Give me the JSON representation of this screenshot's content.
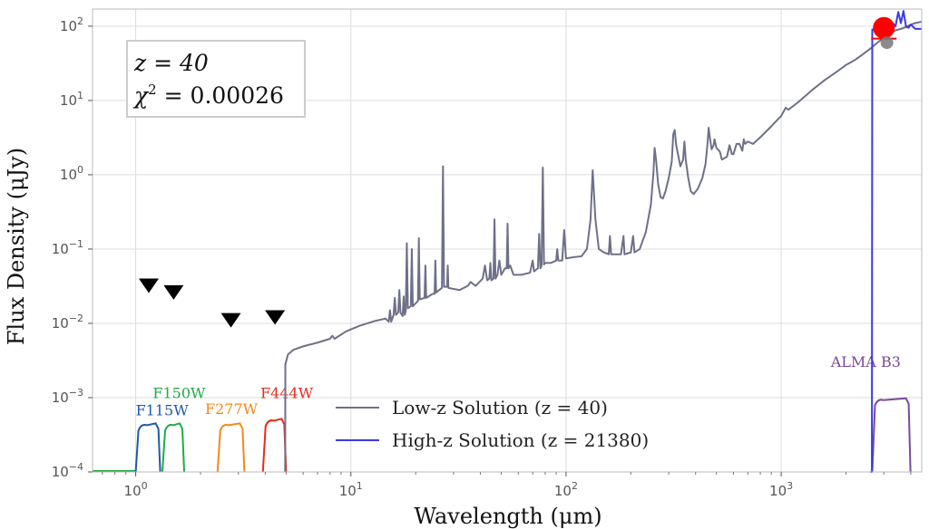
{
  "chart_data": {
    "type": "line",
    "xlabel": "Wavelength (μm)",
    "ylabel": "Flux Density (μJy)",
    "xscale": "log",
    "yscale": "log",
    "xlim": [
      0.63,
      4500
    ],
    "ylim": [
      0.0001,
      170
    ],
    "x_ticks": [
      {
        "value": 1,
        "base": "10",
        "exp": "0"
      },
      {
        "value": 10,
        "base": "10",
        "exp": "1"
      },
      {
        "value": 100,
        "base": "10",
        "exp": "2"
      },
      {
        "value": 1000,
        "base": "10",
        "exp": "3"
      }
    ],
    "y_ticks": [
      {
        "value": 0.0001,
        "base": "10",
        "exp": "−4"
      },
      {
        "value": 0.001,
        "base": "10",
        "exp": "−3"
      },
      {
        "value": 0.01,
        "base": "10",
        "exp": "−2"
      },
      {
        "value": 0.1,
        "base": "10",
        "exp": "−1"
      },
      {
        "value": 1,
        "base": "10",
        "exp": "0"
      },
      {
        "value": 10,
        "base": "10",
        "exp": "1"
      },
      {
        "value": 100,
        "base": "10",
        "exp": "2"
      }
    ],
    "grid": true,
    "annotation": {
      "line1": "z = 40",
      "line2_prefix": "χ",
      "line2_exp": "2",
      "line2_value": " = 0.00026"
    },
    "legend": {
      "position": "bottom-center",
      "entries": [
        {
          "label": "Low-z Solution (z = 40)",
          "color": "#6e7088"
        },
        {
          "label": "High-z Solution (z = 21380)",
          "color": "#3a3ae8"
        }
      ]
    },
    "series": [
      {
        "name": "Low-z Solution (z = 40)",
        "color": "#6e7088",
        "points": [
          [
            4.95,
            0.0001
          ],
          [
            4.96,
            0.0028
          ],
          [
            5.1,
            0.0038
          ],
          [
            5.4,
            0.0044
          ],
          [
            6.0,
            0.0049
          ],
          [
            7.0,
            0.0055
          ],
          [
            8.0,
            0.0062
          ],
          [
            8.2,
            0.0068
          ],
          [
            8.4,
            0.0062
          ],
          [
            9.5,
            0.0078
          ],
          [
            11,
            0.0093
          ],
          [
            13,
            0.0108
          ],
          [
            14.5,
            0.0116
          ],
          [
            15,
            0.0105
          ],
          [
            15.2,
            0.015
          ],
          [
            15.4,
            0.0105
          ],
          [
            15.8,
            0.013
          ],
          [
            16,
            0.022
          ],
          [
            16.2,
            0.013
          ],
          [
            16.6,
            0.014
          ],
          [
            16.8,
            0.028
          ],
          [
            17.0,
            0.014
          ],
          [
            17.4,
            0.0125
          ],
          [
            17.6,
            0.023
          ],
          [
            17.8,
            0.013
          ],
          [
            18.0,
            0.015
          ],
          [
            18.2,
            0.12
          ],
          [
            18.4,
            0.016
          ],
          [
            19,
            0.017
          ],
          [
            19.2,
            0.1
          ],
          [
            19.4,
            0.017
          ],
          [
            20.5,
            0.02
          ],
          [
            20.7,
            0.14
          ],
          [
            20.9,
            0.021
          ],
          [
            22,
            0.022
          ],
          [
            22.2,
            0.06
          ],
          [
            22.4,
            0.022
          ],
          [
            24,
            0.025
          ],
          [
            24.5,
            0.025
          ],
          [
            24.7,
            0.07
          ],
          [
            24.9,
            0.026
          ],
          [
            26.5,
            0.03
          ],
          [
            26.8,
            1.3
          ],
          [
            27.1,
            0.031
          ],
          [
            28,
            0.031
          ],
          [
            28.2,
            0.06
          ],
          [
            28.4,
            0.03
          ],
          [
            32,
            0.028
          ],
          [
            35,
            0.032
          ],
          [
            36,
            0.036
          ],
          [
            38,
            0.032
          ],
          [
            41,
            0.04
          ],
          [
            42,
            0.06
          ],
          [
            43,
            0.038
          ],
          [
            44,
            0.04
          ],
          [
            44.5,
            0.065
          ],
          [
            45,
            0.038
          ],
          [
            46,
            0.04
          ],
          [
            46.5,
            0.25
          ],
          [
            47,
            0.04
          ],
          [
            48,
            0.045
          ],
          [
            49,
            0.07
          ],
          [
            50,
            0.045
          ],
          [
            52,
            0.055
          ],
          [
            53,
            0.055
          ],
          [
            53.5,
            0.22
          ],
          [
            54,
            0.055
          ],
          [
            55,
            0.06
          ],
          [
            57,
            0.045
          ],
          [
            62,
            0.045
          ],
          [
            68,
            0.048
          ],
          [
            70,
            0.07
          ],
          [
            71,
            0.05
          ],
          [
            74,
            0.055
          ],
          [
            75,
            0.16
          ],
          [
            76,
            0.055
          ],
          [
            77,
            0.06
          ],
          [
            78,
            1.25
          ],
          [
            79,
            0.062
          ],
          [
            80,
            0.065
          ],
          [
            82,
            0.065
          ],
          [
            85,
            0.065
          ],
          [
            88,
            0.068
          ],
          [
            90,
            0.07
          ],
          [
            91,
            0.1
          ],
          [
            92,
            0.07
          ],
          [
            96,
            0.07
          ],
          [
            98,
            0.18
          ],
          [
            100,
            0.075
          ],
          [
            110,
            0.078
          ],
          [
            118,
            0.08
          ],
          [
            125,
            0.1
          ],
          [
            130,
            0.25
          ],
          [
            133,
            1.15
          ],
          [
            137,
            0.25
          ],
          [
            142,
            0.1
          ],
          [
            150,
            0.09
          ],
          [
            158,
            0.085
          ],
          [
            160,
            0.15
          ],
          [
            162,
            0.085
          ],
          [
            180,
            0.085
          ],
          [
            185,
            0.15
          ],
          [
            187,
            0.085
          ],
          [
            200,
            0.09
          ],
          [
            205,
            0.15
          ],
          [
            208,
            0.09
          ],
          [
            220,
            0.1
          ],
          [
            235,
            0.17
          ],
          [
            248,
            0.4
          ],
          [
            255,
            1.1
          ],
          [
            258,
            2.3
          ],
          [
            262,
            1.6
          ],
          [
            268,
            0.75
          ],
          [
            275,
            0.5
          ],
          [
            282,
            0.48
          ],
          [
            290,
            0.6
          ],
          [
            300,
            0.9
          ],
          [
            310,
            1.5
          ],
          [
            315,
            3.5
          ],
          [
            320,
            4.0
          ],
          [
            325,
            2.5
          ],
          [
            340,
            1.3
          ],
          [
            350,
            1.6
          ],
          [
            355,
            2.8
          ],
          [
            360,
            1.6
          ],
          [
            370,
            0.9
          ],
          [
            380,
            0.6
          ],
          [
            392,
            0.55
          ],
          [
            410,
            0.65
          ],
          [
            430,
            0.9
          ],
          [
            445,
            1.4
          ],
          [
            455,
            2.7
          ],
          [
            460,
            4.3
          ],
          [
            466,
            3.2
          ],
          [
            475,
            2.2
          ],
          [
            485,
            2.5
          ],
          [
            490,
            3.0
          ],
          [
            500,
            2.3
          ],
          [
            515,
            2.1
          ],
          [
            520,
            2.0
          ],
          [
            530,
            1.6
          ],
          [
            560,
            1.75
          ],
          [
            575,
            2.5
          ],
          [
            590,
            1.9
          ],
          [
            600,
            1.9
          ],
          [
            620,
            2.6
          ],
          [
            640,
            2.6
          ],
          [
            660,
            2.1
          ],
          [
            670,
            3.0
          ],
          [
            680,
            2.6
          ],
          [
            700,
            2.8
          ],
          [
            740,
            2.6
          ],
          [
            800,
            3.2
          ],
          [
            900,
            4.5
          ],
          [
            1000,
            6.2
          ],
          [
            1050,
            8.0
          ],
          [
            1080,
            7.5
          ],
          [
            1200,
            9.5
          ],
          [
            1400,
            14
          ],
          [
            1600,
            19
          ],
          [
            1800,
            24
          ],
          [
            2000,
            30
          ],
          [
            2200,
            35
          ],
          [
            2400,
            42
          ],
          [
            2600,
            50
          ],
          [
            2800,
            60
          ],
          [
            3000,
            70
          ],
          [
            3200,
            80
          ],
          [
            3400,
            88
          ],
          [
            3600,
            92
          ],
          [
            3800,
            97
          ],
          [
            4000,
            105
          ],
          [
            4200,
            110
          ],
          [
            4500,
            115
          ]
        ]
      },
      {
        "name": "High-z Solution (z = 21380)",
        "color": "#3a3ae8",
        "points": [
          [
            2600,
            0.0001
          ],
          [
            2640,
            0.0001
          ],
          [
            2650,
            90
          ],
          [
            3000,
            92
          ],
          [
            3200,
            95
          ],
          [
            3300,
            110
          ],
          [
            3400,
            100
          ],
          [
            3500,
            155
          ],
          [
            3600,
            110
          ],
          [
            3700,
            160
          ],
          [
            3800,
            100
          ],
          [
            3900,
            95
          ],
          [
            4000,
            105
          ],
          [
            4200,
            92
          ],
          [
            4500,
            92
          ]
        ]
      }
    ],
    "upper_limits": [
      {
        "x": 1.15,
        "y": 0.032
      },
      {
        "x": 1.5,
        "y": 0.026
      },
      {
        "x": 2.77,
        "y": 0.011
      },
      {
        "x": 4.44,
        "y": 0.012
      }
    ],
    "detections": [
      {
        "x": 3000,
        "y": 95,
        "color": "#ff0000",
        "err_low": 68,
        "err_high": 105
      },
      {
        "x": 3100,
        "y": 60,
        "color": "#777777"
      }
    ],
    "filters": [
      {
        "name": "F115W",
        "color": "#1f5aa6",
        "x0": 1.0,
        "x1": 1.3,
        "label_x": 1.0,
        "label_y": 0.00058
      },
      {
        "name": "F150W",
        "color": "#22aa44",
        "x0": 1.33,
        "x1": 1.68,
        "label_x": 1.2,
        "label_y": 0.00098
      },
      {
        "name": "F277W",
        "color": "#f08a1c",
        "x0": 2.4,
        "x1": 3.2,
        "label_x": 2.1,
        "label_y": 0.0006
      },
      {
        "name": "F444W",
        "color": "#e62b1c",
        "x0": 3.9,
        "x1": 5.0,
        "label_x": 3.8,
        "label_y": 0.00098
      },
      {
        "name": "ALMA B3",
        "color": "#7a4a9a",
        "x0": 2650,
        "x1": 3990,
        "label_x": 1700,
        "label_y": 0.0026
      }
    ],
    "filter_height": 0.00045,
    "filter_floor_color": "#22aa44"
  }
}
